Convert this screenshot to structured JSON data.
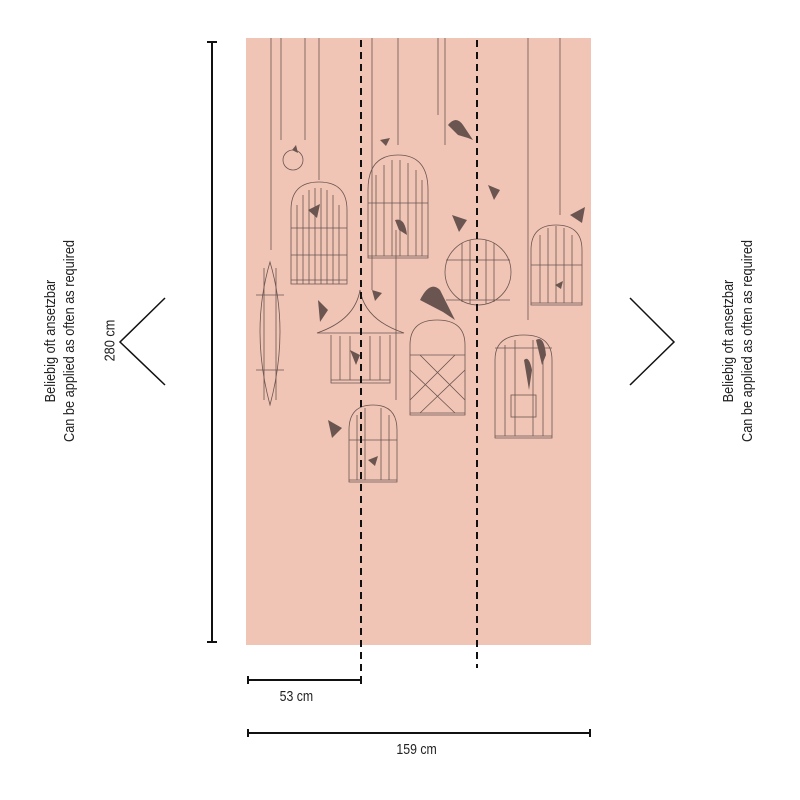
{
  "dimensions": {
    "height_label": "280 cm",
    "panel_width_label": "53 cm",
    "total_width_label": "159 cm"
  },
  "note_left": {
    "line1": "Beliebig oft ansetzbar",
    "line2": "Can be applied as often as required"
  },
  "note_right": {
    "line1": "Beliebig oft ansetzbar",
    "line2": "Can be applied as often as required"
  },
  "colors": {
    "wallpaper": "#f1c5b5",
    "motif": "#6b5551",
    "lines": "#111111"
  },
  "icons": [
    "chevron-left-icon",
    "chevron-right-icon"
  ]
}
